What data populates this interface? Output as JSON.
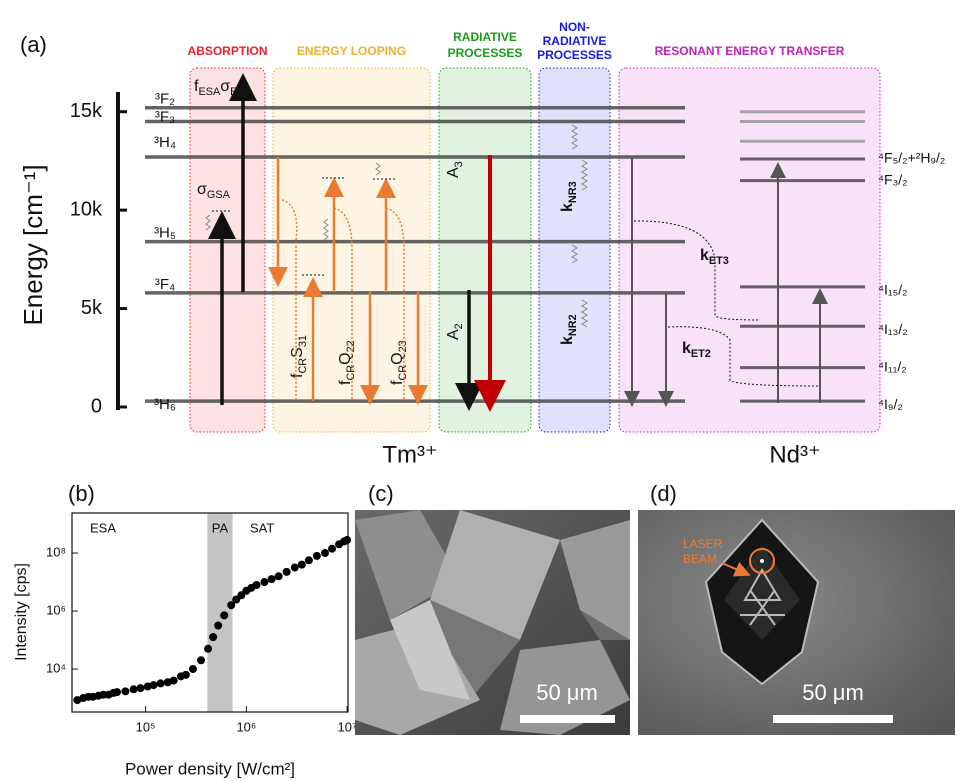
{
  "diagram": {
    "panel_label": "(a)",
    "axis_label": "Energy [cm⁻¹]",
    "ylim": [
      0,
      16000
    ],
    "yticks": [
      {
        "value": 0,
        "label": "0"
      },
      {
        "value": 5000,
        "label": "5k"
      },
      {
        "value": 10000,
        "label": "10k"
      },
      {
        "value": 15000,
        "label": "15k"
      }
    ],
    "sections": [
      {
        "lines": [
          "ABSORPTION"
        ],
        "color": "#e8202a"
      },
      {
        "lines": [
          "ENERGY LOOPING"
        ],
        "color": "#f2ad2a"
      },
      {
        "lines": [
          "RADIATIVE",
          "PROCESSES"
        ],
        "color": "#1a9a1a"
      },
      {
        "lines": [
          "NON-",
          "RADIATIVE",
          "PROCESSES"
        ],
        "color": "#1a1ae0"
      },
      {
        "lines": [
          "RESONANT ENERGY TRANSFER"
        ],
        "color": "#c020c0"
      }
    ],
    "ions": [
      "Tm³⁺",
      "Nd³⁺"
    ],
    "tm_levels": [
      {
        "label": "³F₂",
        "energy": 15200
      },
      {
        "label": "³F₃",
        "energy": 14500
      },
      {
        "label": "³H₄",
        "energy": 12700
      },
      {
        "label": "³H₅",
        "energy": 8400
      },
      {
        "label": "³F₄",
        "energy": 5800
      },
      {
        "label": "³H₆",
        "energy": 300
      }
    ],
    "nd_levels": [
      {
        "label": null,
        "energy": 15000
      },
      {
        "label": null,
        "energy": 14500
      },
      {
        "label": null,
        "energy": 13500
      },
      {
        "label": "⁴F₅/₂+²H₉/₂",
        "energy": 12600
      },
      {
        "label": "⁴F₃/₂",
        "energy": 11500
      },
      {
        "label": "⁴I₁₅/₂",
        "energy": 6100
      },
      {
        "label": "⁴I₁₃/₂",
        "energy": 4100
      },
      {
        "label": "⁴I₁₁/₂",
        "energy": 2000
      },
      {
        "label": "⁴I₉/₂",
        "energy": 300
      }
    ],
    "transitions": {
      "esa": [
        {
          "symbol": "f",
          "subscript": "ESA"
        },
        {
          "symbol": "σ",
          "subscript": "ESA"
        }
      ],
      "gsa": [
        {
          "symbol": "σ",
          "subscript": "GSA"
        }
      ],
      "cr31": [
        {
          "symbol": "f",
          "subscript": "CR"
        },
        {
          "symbol": "S",
          "subscript": "31"
        }
      ],
      "cr22": [
        {
          "symbol": "f",
          "subscript": "CR"
        },
        {
          "symbol": "Q",
          "subscript": "22"
        }
      ],
      "cr23": [
        {
          "symbol": "f",
          "subscript": "CR"
        },
        {
          "symbol": "Q",
          "subscript": "23"
        }
      ],
      "a3": [
        {
          "symbol": "A",
          "subscript": "3"
        }
      ],
      "a2": [
        {
          "symbol": "A",
          "subscript": "2"
        }
      ],
      "knr3": [
        {
          "symbol": "k",
          "subscript": "NR3"
        }
      ],
      "knr2": [
        {
          "symbol": "k",
          "subscript": "NR2"
        }
      ],
      "ket3": [
        {
          "symbol": "k",
          "subscript": "ET3"
        }
      ],
      "ket2": [
        {
          "symbol": "k",
          "subscript": "ET2"
        }
      ]
    }
  },
  "chart_data": {
    "type": "scatter",
    "panel_label": "(b)",
    "x_label": "Power density [W/cm²]",
    "y_label": "Intensity [cps]",
    "log_x": true,
    "log_y": true,
    "color": "#000000",
    "xlim": [
      18600,
      10200000
    ],
    "ylim": [
      330,
      2400000000
    ],
    "xticks": [
      {
        "value": 100000,
        "label": "10⁵"
      },
      {
        "value": 1000000,
        "label": "10⁶"
      },
      {
        "value": 10000000,
        "label": "10⁷"
      }
    ],
    "yticks": [
      {
        "value": 10000,
        "label": "10⁴"
      },
      {
        "value": 1000000,
        "label": "10⁶"
      },
      {
        "value": 100000000,
        "label": "10⁸"
      }
    ],
    "annotations": [
      "ESA",
      "SAT"
    ],
    "shaded_region": {
      "label": "PA",
      "x": [
        410000,
        730000
      ],
      "color": "#c4c4c4"
    },
    "series": [
      {
        "x": [
          21000,
          24000,
          27000,
          30000,
          34000,
          38000,
          43000,
          48000,
          52000,
          63000,
          76000,
          89000,
          105000,
          120000,
          141000,
          166000,
          190000,
          224000,
          251000,
          295000,
          355000,
          417000,
          468000,
          525000,
          603000,
          708000,
          794000,
          891000,
          1000000,
          1120000,
          1260000,
          1510000,
          1780000,
          2090000,
          2510000,
          3020000,
          3550000,
          4170000,
          5010000,
          6030000,
          7080000,
          8320000,
          9330000,
          10000000
        ],
        "values": [
          850,
          1000,
          1100,
          1100,
          1200,
          1300,
          1300,
          1500,
          1600,
          1700,
          2000,
          2200,
          2500,
          2800,
          3200,
          3500,
          4000,
          5600,
          6300,
          10000,
          20000,
          50000,
          126000,
          316000,
          708000,
          1600000,
          2500000,
          3500000,
          5000000,
          6300000,
          7900000,
          10000000,
          12600000,
          15800000,
          22400000,
          31600000,
          39800000,
          56200000,
          79400000,
          100000000,
          141000000,
          200000000,
          251000000,
          282000000
        ]
      }
    ]
  },
  "images": {
    "c": {
      "panel_label": "(c)",
      "scale_bar": "50 μm"
    },
    "d": {
      "panel_label": "(d)",
      "scale_bar": "50 μm",
      "annotation": [
        "LASER",
        "BEAM"
      ]
    }
  }
}
